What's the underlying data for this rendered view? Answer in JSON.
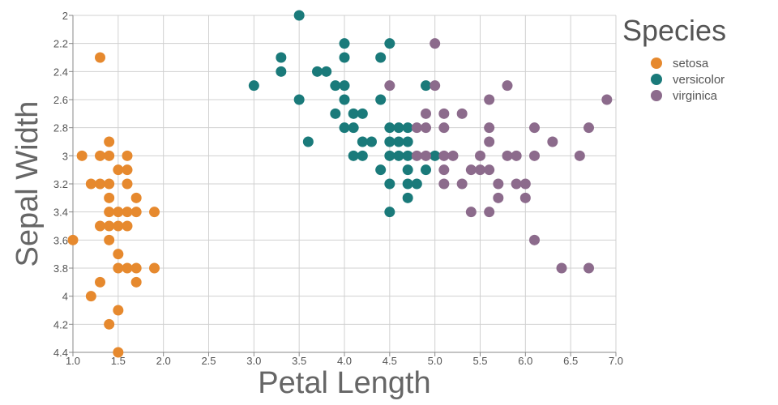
{
  "chart_data": {
    "type": "scatter",
    "title": "",
    "xlabel": "Petal Length",
    "ylabel": "Sepal Width",
    "xlim": [
      1.0,
      7.0
    ],
    "ylim": [
      2.0,
      4.4
    ],
    "y_inverted": true,
    "x_ticks": [
      "1.0",
      "1.5",
      "2.0",
      "2.5",
      "3.0",
      "3.5",
      "4.0",
      "4.5",
      "5.0",
      "5.5",
      "6.0",
      "6.5",
      "7.0"
    ],
    "y_ticks": [
      "2",
      "2.2",
      "2.4",
      "2.6",
      "2.8",
      "3",
      "3.2",
      "3.4",
      "3.6",
      "3.8",
      "4",
      "4.2",
      "4.4"
    ],
    "grid": true,
    "legend": {
      "title": "Species",
      "position": "top-right"
    },
    "series": [
      {
        "name": "setosa",
        "color": "#e6892e",
        "points": [
          [
            1.3,
            2.3
          ],
          [
            1.4,
            2.9
          ],
          [
            1.1,
            3.0
          ],
          [
            1.3,
            3.0
          ],
          [
            1.4,
            3.0
          ],
          [
            1.6,
            3.0
          ],
          [
            1.5,
            3.1
          ],
          [
            1.6,
            3.1
          ],
          [
            1.2,
            3.2
          ],
          [
            1.3,
            3.2
          ],
          [
            1.4,
            3.2
          ],
          [
            1.6,
            3.2
          ],
          [
            1.4,
            3.3
          ],
          [
            1.7,
            3.3
          ],
          [
            1.4,
            3.4
          ],
          [
            1.5,
            3.4
          ],
          [
            1.6,
            3.4
          ],
          [
            1.7,
            3.4
          ],
          [
            1.9,
            3.4
          ],
          [
            1.3,
            3.5
          ],
          [
            1.4,
            3.5
          ],
          [
            1.5,
            3.5
          ],
          [
            1.6,
            3.5
          ],
          [
            1.0,
            3.6
          ],
          [
            1.4,
            3.6
          ],
          [
            1.5,
            3.7
          ],
          [
            1.5,
            3.8
          ],
          [
            1.6,
            3.8
          ],
          [
            1.7,
            3.8
          ],
          [
            1.9,
            3.8
          ],
          [
            1.3,
            3.9
          ],
          [
            1.7,
            3.9
          ],
          [
            1.2,
            4.0
          ],
          [
            1.5,
            4.1
          ],
          [
            1.4,
            4.2
          ],
          [
            1.5,
            4.4
          ]
        ]
      },
      {
        "name": "versicolor",
        "color": "#1a7a7a",
        "points": [
          [
            3.5,
            2.0
          ],
          [
            4.0,
            2.2
          ],
          [
            4.5,
            2.2
          ],
          [
            3.3,
            2.3
          ],
          [
            4.0,
            2.3
          ],
          [
            4.4,
            2.3
          ],
          [
            3.3,
            2.4
          ],
          [
            3.7,
            2.4
          ],
          [
            3.8,
            2.4
          ],
          [
            3.0,
            2.5
          ],
          [
            3.9,
            2.5
          ],
          [
            4.0,
            2.5
          ],
          [
            4.9,
            2.5
          ],
          [
            3.5,
            2.6
          ],
          [
            4.0,
            2.6
          ],
          [
            4.4,
            2.6
          ],
          [
            3.9,
            2.7
          ],
          [
            4.1,
            2.7
          ],
          [
            4.2,
            2.7
          ],
          [
            4.0,
            2.8
          ],
          [
            4.1,
            2.8
          ],
          [
            4.5,
            2.8
          ],
          [
            4.6,
            2.8
          ],
          [
            4.7,
            2.8
          ],
          [
            3.6,
            2.9
          ],
          [
            4.2,
            2.9
          ],
          [
            4.3,
            2.9
          ],
          [
            4.5,
            2.9
          ],
          [
            4.6,
            2.9
          ],
          [
            4.7,
            2.9
          ],
          [
            4.1,
            3.0
          ],
          [
            4.2,
            3.0
          ],
          [
            4.5,
            3.0
          ],
          [
            4.6,
            3.0
          ],
          [
            4.7,
            3.0
          ],
          [
            5.0,
            3.0
          ],
          [
            4.4,
            3.1
          ],
          [
            4.7,
            3.1
          ],
          [
            4.9,
            3.1
          ],
          [
            4.5,
            3.2
          ],
          [
            4.7,
            3.2
          ],
          [
            4.8,
            3.2
          ],
          [
            4.7,
            3.3
          ],
          [
            4.5,
            3.4
          ]
        ]
      },
      {
        "name": "virginica",
        "color": "#8c6b8c",
        "points": [
          [
            5.0,
            2.2
          ],
          [
            4.5,
            2.5
          ],
          [
            5.0,
            2.5
          ],
          [
            5.8,
            2.5
          ],
          [
            5.6,
            2.6
          ],
          [
            6.9,
            2.6
          ],
          [
            4.9,
            2.7
          ],
          [
            5.1,
            2.7
          ],
          [
            5.3,
            2.7
          ],
          [
            4.8,
            2.8
          ],
          [
            4.9,
            2.8
          ],
          [
            5.1,
            2.8
          ],
          [
            5.6,
            2.8
          ],
          [
            6.1,
            2.8
          ],
          [
            6.7,
            2.8
          ],
          [
            5.6,
            2.9
          ],
          [
            6.3,
            2.9
          ],
          [
            4.8,
            3.0
          ],
          [
            4.9,
            3.0
          ],
          [
            5.1,
            3.0
          ],
          [
            5.2,
            3.0
          ],
          [
            5.5,
            3.0
          ],
          [
            5.8,
            3.0
          ],
          [
            5.9,
            3.0
          ],
          [
            6.1,
            3.0
          ],
          [
            6.6,
            3.0
          ],
          [
            5.1,
            3.1
          ],
          [
            5.4,
            3.1
          ],
          [
            5.5,
            3.1
          ],
          [
            5.6,
            3.1
          ],
          [
            5.1,
            3.2
          ],
          [
            5.3,
            3.2
          ],
          [
            5.7,
            3.2
          ],
          [
            5.9,
            3.2
          ],
          [
            6.0,
            3.2
          ],
          [
            5.7,
            3.3
          ],
          [
            6.0,
            3.3
          ],
          [
            5.4,
            3.4
          ],
          [
            5.6,
            3.4
          ],
          [
            6.1,
            3.6
          ],
          [
            6.4,
            3.8
          ],
          [
            6.7,
            3.8
          ]
        ]
      }
    ]
  }
}
